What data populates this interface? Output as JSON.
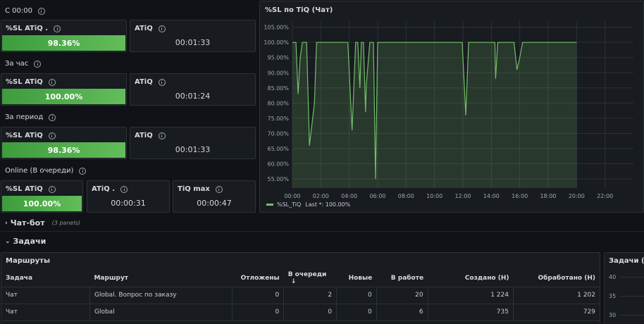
{
  "rows": {
    "since_midnight": "С 00:00",
    "per_hour": "За час",
    "per_period": "За период",
    "online": "Online (В очереди)"
  },
  "stats": {
    "r1_sl_title": "%SL ATiQ .",
    "r1_sl_value": "98.36%",
    "r1_atiq_title": "ATiQ",
    "r1_atiq_value": "00:01:33",
    "r2_sl_title": "%SL ATiQ",
    "r2_sl_value": "100.00%",
    "r2_atiq_title": "ATiQ",
    "r2_atiq_value": "00:01:24",
    "r3_sl_title": "%SL ATiQ",
    "r3_sl_value": "98.36%",
    "r3_atiq_title": "ATiQ",
    "r3_atiq_value": "00:01:33",
    "r4_sl_title": "%SL ATiQ",
    "r4_sl_value": "100.00%",
    "r4_atiq_title": "ATiQ .",
    "r4_atiq_value": "00:00:31",
    "r4_max_title": "TiQ max",
    "r4_max_value": "00:00:47"
  },
  "chart_panel": {
    "title": "%SL по TiQ (Чат)",
    "legend_series": "%SL_TiQ",
    "legend_last": "Last *: 100.00%",
    "series_color": "#73bf69"
  },
  "chart_data": {
    "type": "area",
    "y_ticks": [
      "105.00%",
      "100.00%",
      "95.00%",
      "90.00%",
      "85.00%",
      "80.00%",
      "75.00%",
      "70.00%",
      "65.00%",
      "60.00%",
      "55.00%"
    ],
    "x_ticks": [
      "00:00",
      "02:00",
      "04:00",
      "06:00",
      "08:00",
      "10:00",
      "12:00",
      "14:00",
      "16:00",
      "18:00",
      "20:00",
      "22:00"
    ],
    "ylim": [
      52,
      107
    ],
    "xlim": [
      0,
      24
    ],
    "series": [
      {
        "name": "%SL_TiQ",
        "x": [
          0,
          0.25,
          0.4,
          0.55,
          0.7,
          0.85,
          0.9,
          1.0,
          1.2,
          1.55,
          1.7,
          3.6,
          3.7,
          3.9,
          4.2,
          4.45,
          4.6,
          4.75,
          4.85,
          5.0,
          5.15,
          5.2,
          5.45,
          5.55,
          5.6,
          5.7,
          5.85,
          6.0,
          11.7,
          11.8,
          11.95,
          12.2,
          12.4,
          14.0,
          14.2,
          14.25,
          14.3,
          14.45,
          15.5,
          15.6,
          15.8,
          16.0,
          16.2,
          20.0
        ],
        "y": [
          100,
          100,
          83,
          95,
          100,
          100,
          100,
          100,
          66,
          80,
          100,
          100,
          100,
          100,
          71,
          100,
          100,
          85,
          100,
          100,
          77,
          86,
          100,
          100,
          100,
          100,
          55,
          100,
          100,
          100,
          100,
          76,
          100,
          100,
          100,
          100,
          88,
          100,
          100,
          100,
          91,
          95,
          100,
          100
        ]
      }
    ]
  },
  "collapsed_row": {
    "title": "Чат-бот",
    "sub": "(3 panels)"
  },
  "tasks_row": {
    "title": "Задачи"
  },
  "routes_table": {
    "title": "Маршруты",
    "columns": [
      "Задача",
      "Маршрут",
      "Отложены",
      "В очереди",
      "Новые",
      "В работе",
      "Создано (Н)",
      "Обработано (Н)"
    ],
    "sort_arrow": "↓",
    "rows": [
      [
        "Чат",
        "Global. Вопрос по заказу",
        "0",
        "2",
        "0",
        "20",
        "1 224",
        "1 202"
      ],
      [
        "Чат",
        "Global",
        "0",
        "0",
        "0",
        "6",
        "735",
        "729"
      ]
    ]
  },
  "tasks_panel": {
    "title": "Задачи (Ча",
    "y_ticks": [
      "40",
      "35",
      "30"
    ]
  }
}
